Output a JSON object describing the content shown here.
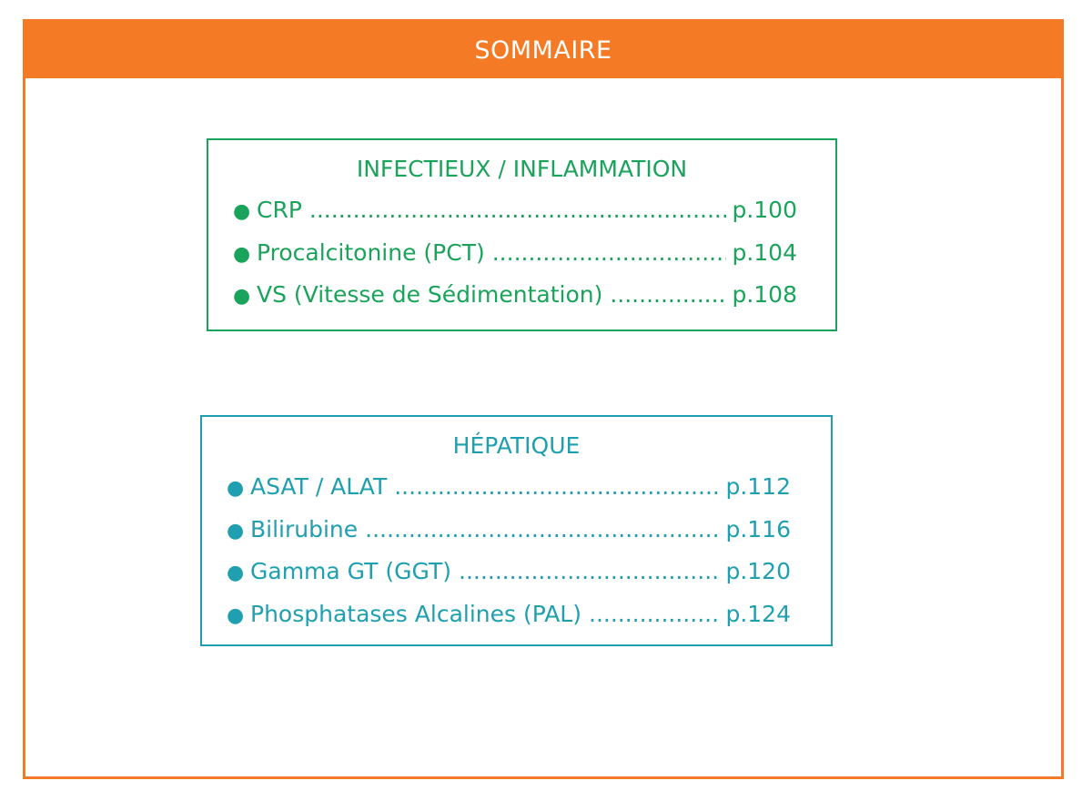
{
  "header": {
    "title": "SOMMAIRE"
  },
  "sections": [
    {
      "title": "INFECTIEUX / INFLAMMATION",
      "color": "#1aa35a",
      "items": [
        {
          "label": "CRP",
          "page": "p.100"
        },
        {
          "label": "Procalcitonine (PCT)",
          "page": "p.104"
        },
        {
          "label": "VS (Vitesse de Sédimentation)",
          "page": "p.108"
        }
      ]
    },
    {
      "title": "HÉPATIQUE",
      "color": "#1f9fb0",
      "items": [
        {
          "label": "ASAT / ALAT",
          "page": "p.112"
        },
        {
          "label": "Bilirubine",
          "page": "p.116"
        },
        {
          "label": "Gamma GT (GGT)",
          "page": "p.120"
        },
        {
          "label": "Phosphatases Alcalines (PAL)",
          "page": "p.124"
        }
      ]
    }
  ],
  "accent_color": "#f47a26"
}
